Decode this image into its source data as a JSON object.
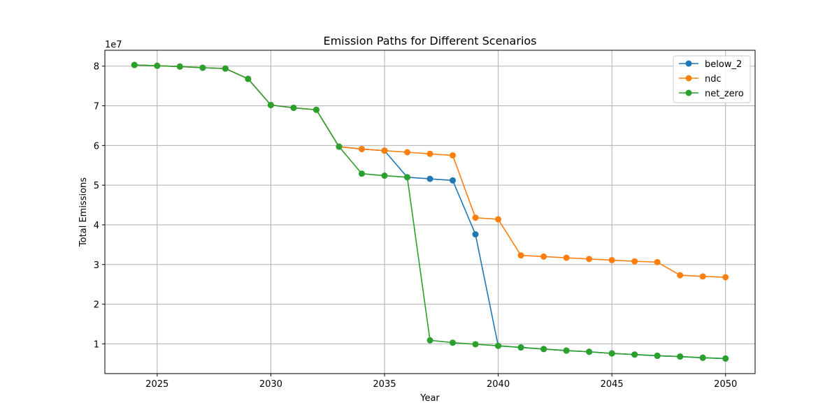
{
  "chart_data": {
    "type": "line",
    "title": "Emission Paths for Different Scenarios",
    "xlabel": "Year",
    "ylabel": "Total Emissions",
    "y_scale_label": "1e7",
    "xlim": [
      2022.7,
      2051.3
    ],
    "ylim": [
      0.25,
      8.4
    ],
    "x_ticks": [
      2025,
      2030,
      2035,
      2040,
      2045,
      2050
    ],
    "y_ticks": [
      1,
      2,
      3,
      4,
      5,
      6,
      7,
      8
    ],
    "grid": true,
    "legend_position": "top-right",
    "x": [
      2024,
      2025,
      2026,
      2027,
      2028,
      2029,
      2030,
      2031,
      2032,
      2033,
      2034,
      2035,
      2036,
      2037,
      2038,
      2039,
      2040,
      2041,
      2042,
      2043,
      2044,
      2045,
      2046,
      2047,
      2048,
      2049,
      2050
    ],
    "series": [
      {
        "name": "below_2",
        "color": "#1f77b4",
        "values": [
          8.03,
          8.01,
          7.99,
          7.96,
          7.94,
          7.68,
          7.02,
          6.95,
          6.9,
          5.97,
          5.91,
          5.87,
          5.2,
          5.16,
          5.12,
          3.76,
          0.95,
          0.91,
          0.87,
          0.83,
          0.8,
          0.76,
          0.73,
          0.7,
          0.68,
          0.65,
          0.63
        ]
      },
      {
        "name": "ndc",
        "color": "#ff7f0e",
        "values": [
          8.03,
          8.01,
          7.99,
          7.96,
          7.94,
          7.68,
          7.02,
          6.95,
          6.9,
          5.97,
          5.91,
          5.87,
          5.83,
          5.79,
          5.75,
          4.18,
          4.14,
          3.23,
          3.2,
          3.17,
          3.14,
          3.11,
          3.08,
          3.06,
          2.73,
          2.7,
          2.68
        ]
      },
      {
        "name": "net_zero",
        "color": "#2ca02c",
        "values": [
          8.03,
          8.01,
          7.99,
          7.96,
          7.94,
          7.68,
          7.02,
          6.95,
          6.9,
          5.97,
          5.29,
          5.24,
          5.2,
          1.09,
          1.03,
          0.99,
          0.95,
          0.91,
          0.87,
          0.83,
          0.8,
          0.76,
          0.73,
          0.7,
          0.68,
          0.65,
          0.63
        ]
      }
    ]
  }
}
